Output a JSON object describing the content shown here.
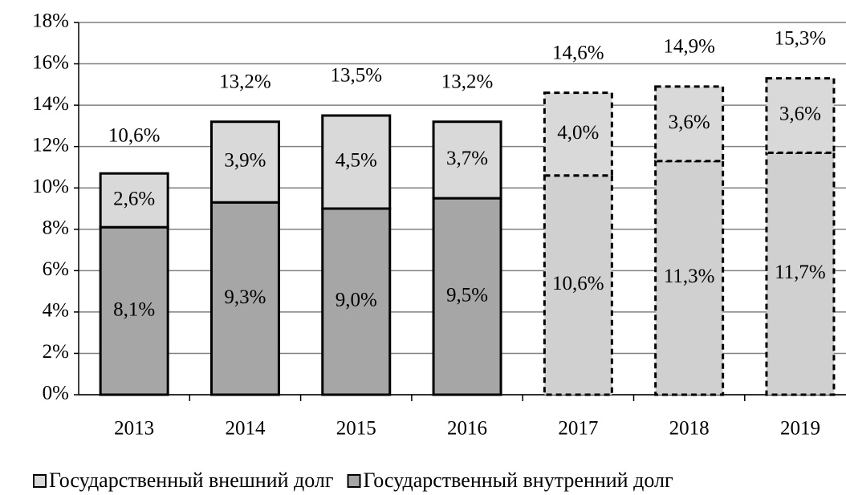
{
  "chart_data": {
    "type": "stacked_bar",
    "categories": [
      "2013",
      "2014",
      "2015",
      "2016",
      "2017",
      "2018",
      "2019"
    ],
    "series": [
      {
        "name": "Государственный внутренний долг",
        "color": "#a6a6a6",
        "colors": [
          "#a6a6a6",
          "#a6a6a6",
          "#a6a6a6",
          "#a6a6a6",
          "#d0d0d0",
          "#d0d0d0",
          "#d0d0d0"
        ],
        "values": [
          8.1,
          9.3,
          9.0,
          9.5,
          10.6,
          11.3,
          11.7
        ],
        "value_labels": [
          "8,1%",
          "9,3%",
          "9,0%",
          "9,5%",
          "10,6%",
          "11,3%",
          "11,7%"
        ]
      },
      {
        "name": "Государственный внешний долг",
        "color": "#d9d9d9",
        "colors": [
          "#d9d9d9",
          "#d9d9d9",
          "#d9d9d9",
          "#d9d9d9",
          "#d9d9d9",
          "#d9d9d9",
          "#d9d9d9"
        ],
        "values": [
          2.6,
          3.9,
          4.5,
          3.7,
          4.0,
          3.6,
          3.6
        ],
        "value_labels": [
          "2,6%",
          "3,9%",
          "4,5%",
          "3,7%",
          "4,0%",
          "3,6%",
          "3,6%"
        ]
      }
    ],
    "totals": [
      10.6,
      13.2,
      13.5,
      13.2,
      14.6,
      14.9,
      15.3
    ],
    "total_labels": [
      "10,6%",
      "13,2%",
      "13,5%",
      "13,2%",
      "14,6%",
      "14,9%",
      "15,3%"
    ],
    "dashed": [
      false,
      false,
      false,
      false,
      true,
      true,
      true
    ],
    "ylim": [
      0,
      18
    ],
    "yticks": [
      {
        "value": 0,
        "label": "0%"
      },
      {
        "value": 2,
        "label": "2%"
      },
      {
        "value": 4,
        "label": "4%"
      },
      {
        "value": 6,
        "label": "6%"
      },
      {
        "value": 8,
        "label": "8%"
      },
      {
        "value": 10,
        "label": "10%"
      },
      {
        "value": 12,
        "label": "12%"
      },
      {
        "value": 14,
        "label": "14%"
      },
      {
        "value": 16,
        "label": "16%"
      },
      {
        "value": 18,
        "label": "18%"
      }
    ],
    "grid": true
  }
}
